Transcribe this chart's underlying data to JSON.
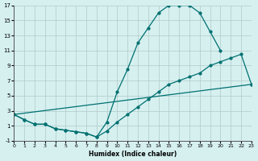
{
  "xlabel": "Humidex (Indice chaleur)",
  "bg_color": "#d6f0f0",
  "grid_color": "#b0c8c8",
  "line_color": "#007070",
  "xlim": [
    0,
    23
  ],
  "ylim": [
    -1,
    17
  ],
  "xticks": [
    0,
    1,
    2,
    3,
    4,
    5,
    6,
    7,
    8,
    9,
    10,
    11,
    12,
    13,
    14,
    15,
    16,
    17,
    18,
    19,
    20,
    21,
    22,
    23
  ],
  "yticks": [
    -1,
    1,
    3,
    5,
    7,
    9,
    11,
    13,
    15,
    17
  ],
  "c1x": [
    0,
    1,
    2,
    3,
    4,
    5,
    6,
    7,
    8,
    9,
    10,
    11,
    12,
    13,
    14,
    15,
    16,
    17,
    18,
    19,
    20
  ],
  "c1y": [
    2.5,
    1.8,
    1.2,
    1.2,
    0.6,
    0.4,
    0.2,
    0.0,
    -0.5,
    1.5,
    5.5,
    8.5,
    12.0,
    14.0,
    16.0,
    17.0,
    17.0,
    17.0,
    16.0,
    13.5,
    11.0
  ],
  "c2x": [
    0,
    1,
    2,
    3,
    4,
    5,
    6,
    7,
    8,
    9,
    10,
    11,
    12,
    13,
    14,
    15,
    16,
    17,
    18,
    19,
    20,
    21,
    22,
    23
  ],
  "c2y": [
    2.5,
    1.8,
    1.2,
    1.2,
    0.6,
    0.4,
    0.2,
    0.0,
    -0.5,
    0.3,
    1.5,
    2.5,
    3.5,
    4.5,
    5.5,
    6.5,
    7.0,
    7.5,
    8.0,
    9.0,
    9.5,
    10.0,
    10.5,
    6.5
  ],
  "c3x": [
    0,
    23
  ],
  "c3y": [
    2.5,
    6.5
  ]
}
